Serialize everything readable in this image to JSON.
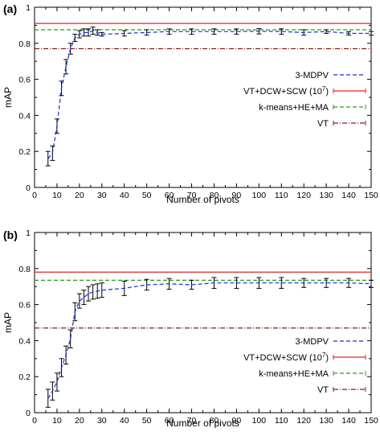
{
  "chart_data": [
    {
      "type": "line",
      "panel_label": "(a)",
      "xlabel": "Number of pivots",
      "ylabel": "mAP",
      "xlim": [
        0,
        150
      ],
      "ylim": [
        0,
        1
      ],
      "xticks": [
        "0",
        "10",
        "20",
        "30",
        "40",
        "50",
        "60",
        "70",
        "80",
        "90",
        "100",
        "110",
        "120",
        "130",
        "140",
        "150"
      ],
      "yticks": [
        "0",
        "0.2",
        "0.4",
        "0.6",
        "0.8",
        "1"
      ],
      "grid": false,
      "legend_position": "center-right",
      "series": [
        {
          "name": "3-MDPV",
          "style": "dashed",
          "color": "#1a2ed6",
          "error_bars": true,
          "x": [
            6,
            8,
            10,
            12,
            14,
            16,
            18,
            20,
            22,
            24,
            26,
            28,
            30,
            40,
            50,
            60,
            70,
            80,
            90,
            100,
            110,
            120,
            130,
            140,
            150
          ],
          "y": [
            0.16,
            0.19,
            0.34,
            0.55,
            0.67,
            0.77,
            0.83,
            0.85,
            0.86,
            0.86,
            0.87,
            0.86,
            0.85,
            0.855,
            0.86,
            0.865,
            0.865,
            0.865,
            0.865,
            0.867,
            0.865,
            0.86,
            0.865,
            0.855,
            0.855
          ],
          "err": [
            0.04,
            0.04,
            0.04,
            0.04,
            0.04,
            0.03,
            0.02,
            0.02,
            0.02,
            0.02,
            0.02,
            0.015,
            0.01,
            0.015,
            0.015,
            0.015,
            0.015,
            0.015,
            0.015,
            0.015,
            0.015,
            0.015,
            0.01,
            0.01,
            0.01
          ]
        },
        {
          "name": "VT+DCW+SCW (10^7)",
          "style": "solid",
          "color": "#e8231f",
          "constant": 0.91
        },
        {
          "name": "k-means+HE+MA",
          "style": "dashed",
          "color": "#2a9a1a",
          "constant": 0.875
        },
        {
          "name": "VT",
          "style": "dashdot",
          "color": "#8b1a1a",
          "constant": 0.77
        }
      ]
    },
    {
      "type": "line",
      "panel_label": "(b)",
      "xlabel": "Number of pivots",
      "ylabel": "mAP",
      "xlim": [
        0,
        150
      ],
      "ylim": [
        0,
        1
      ],
      "xticks": [
        "0",
        "10",
        "20",
        "30",
        "40",
        "50",
        "60",
        "70",
        "80",
        "90",
        "100",
        "110",
        "120",
        "130",
        "140",
        "150"
      ],
      "yticks": [
        "0",
        "0.2",
        "0.4",
        "0.6",
        "0.8",
        "1"
      ],
      "grid": false,
      "legend_position": "bottom-right",
      "series": [
        {
          "name": "3-MDPV",
          "style": "dashed",
          "color": "#1a2ed6",
          "error_bars": true,
          "x": [
            6,
            8,
            10,
            12,
            14,
            16,
            18,
            20,
            22,
            24,
            26,
            28,
            30,
            40,
            50,
            60,
            70,
            80,
            90,
            100,
            110,
            120,
            130,
            140,
            150
          ],
          "y": [
            0.08,
            0.12,
            0.17,
            0.25,
            0.32,
            0.41,
            0.56,
            0.62,
            0.64,
            0.66,
            0.67,
            0.675,
            0.68,
            0.69,
            0.71,
            0.715,
            0.71,
            0.72,
            0.72,
            0.72,
            0.72,
            0.72,
            0.72,
            0.72,
            0.715
          ],
          "err": [
            0.05,
            0.05,
            0.05,
            0.05,
            0.05,
            0.05,
            0.05,
            0.04,
            0.04,
            0.04,
            0.04,
            0.04,
            0.04,
            0.04,
            0.03,
            0.03,
            0.025,
            0.03,
            0.03,
            0.03,
            0.03,
            0.025,
            0.025,
            0.025,
            0.02
          ]
        },
        {
          "name": "VT+DCW+SCW (10^7)",
          "style": "solid",
          "color": "#e8231f",
          "constant": 0.78
        },
        {
          "name": "k-means+HE+MA",
          "style": "dashed",
          "color": "#2a9a1a",
          "constant": 0.735
        },
        {
          "name": "VT",
          "style": "dashdot",
          "color": "#8b1a1a",
          "constant": 0.47
        }
      ]
    }
  ]
}
